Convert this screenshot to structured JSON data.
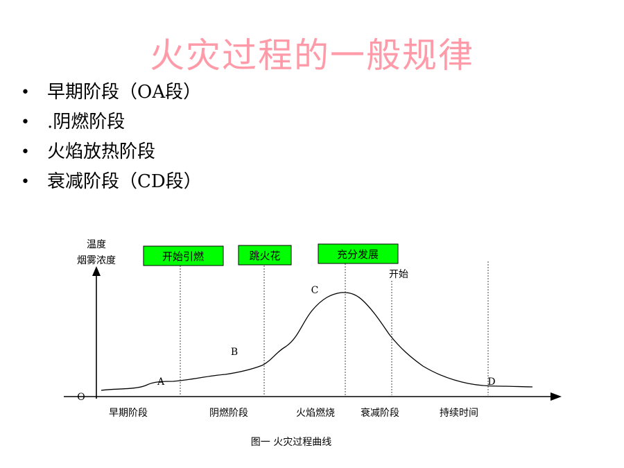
{
  "slide": {
    "title": "火灾过程的一般规律",
    "bullets": [
      "早期阶段（OA段）",
      ".阴燃阶段",
      "火焰放热阶段",
      "衰减阶段（CD段）"
    ],
    "bullet_marker": "•"
  },
  "figure": {
    "y_axis_label_line1": "温度",
    "y_axis_label_line2": "烟雾浓度",
    "origin_label": "O",
    "point_labels": {
      "a": "A",
      "b": "B",
      "c": "C",
      "d": "D"
    },
    "boxes": [
      "开始引燃",
      "跳火花",
      "充分发展"
    ],
    "box_color": "#00ff00",
    "start_label": "开始",
    "stages": [
      "早期阶段",
      "阴燃阶段",
      "火焰燃烧",
      "衰减阶段",
      "持续时间"
    ],
    "caption": "图一  火灾过程曲线"
  }
}
